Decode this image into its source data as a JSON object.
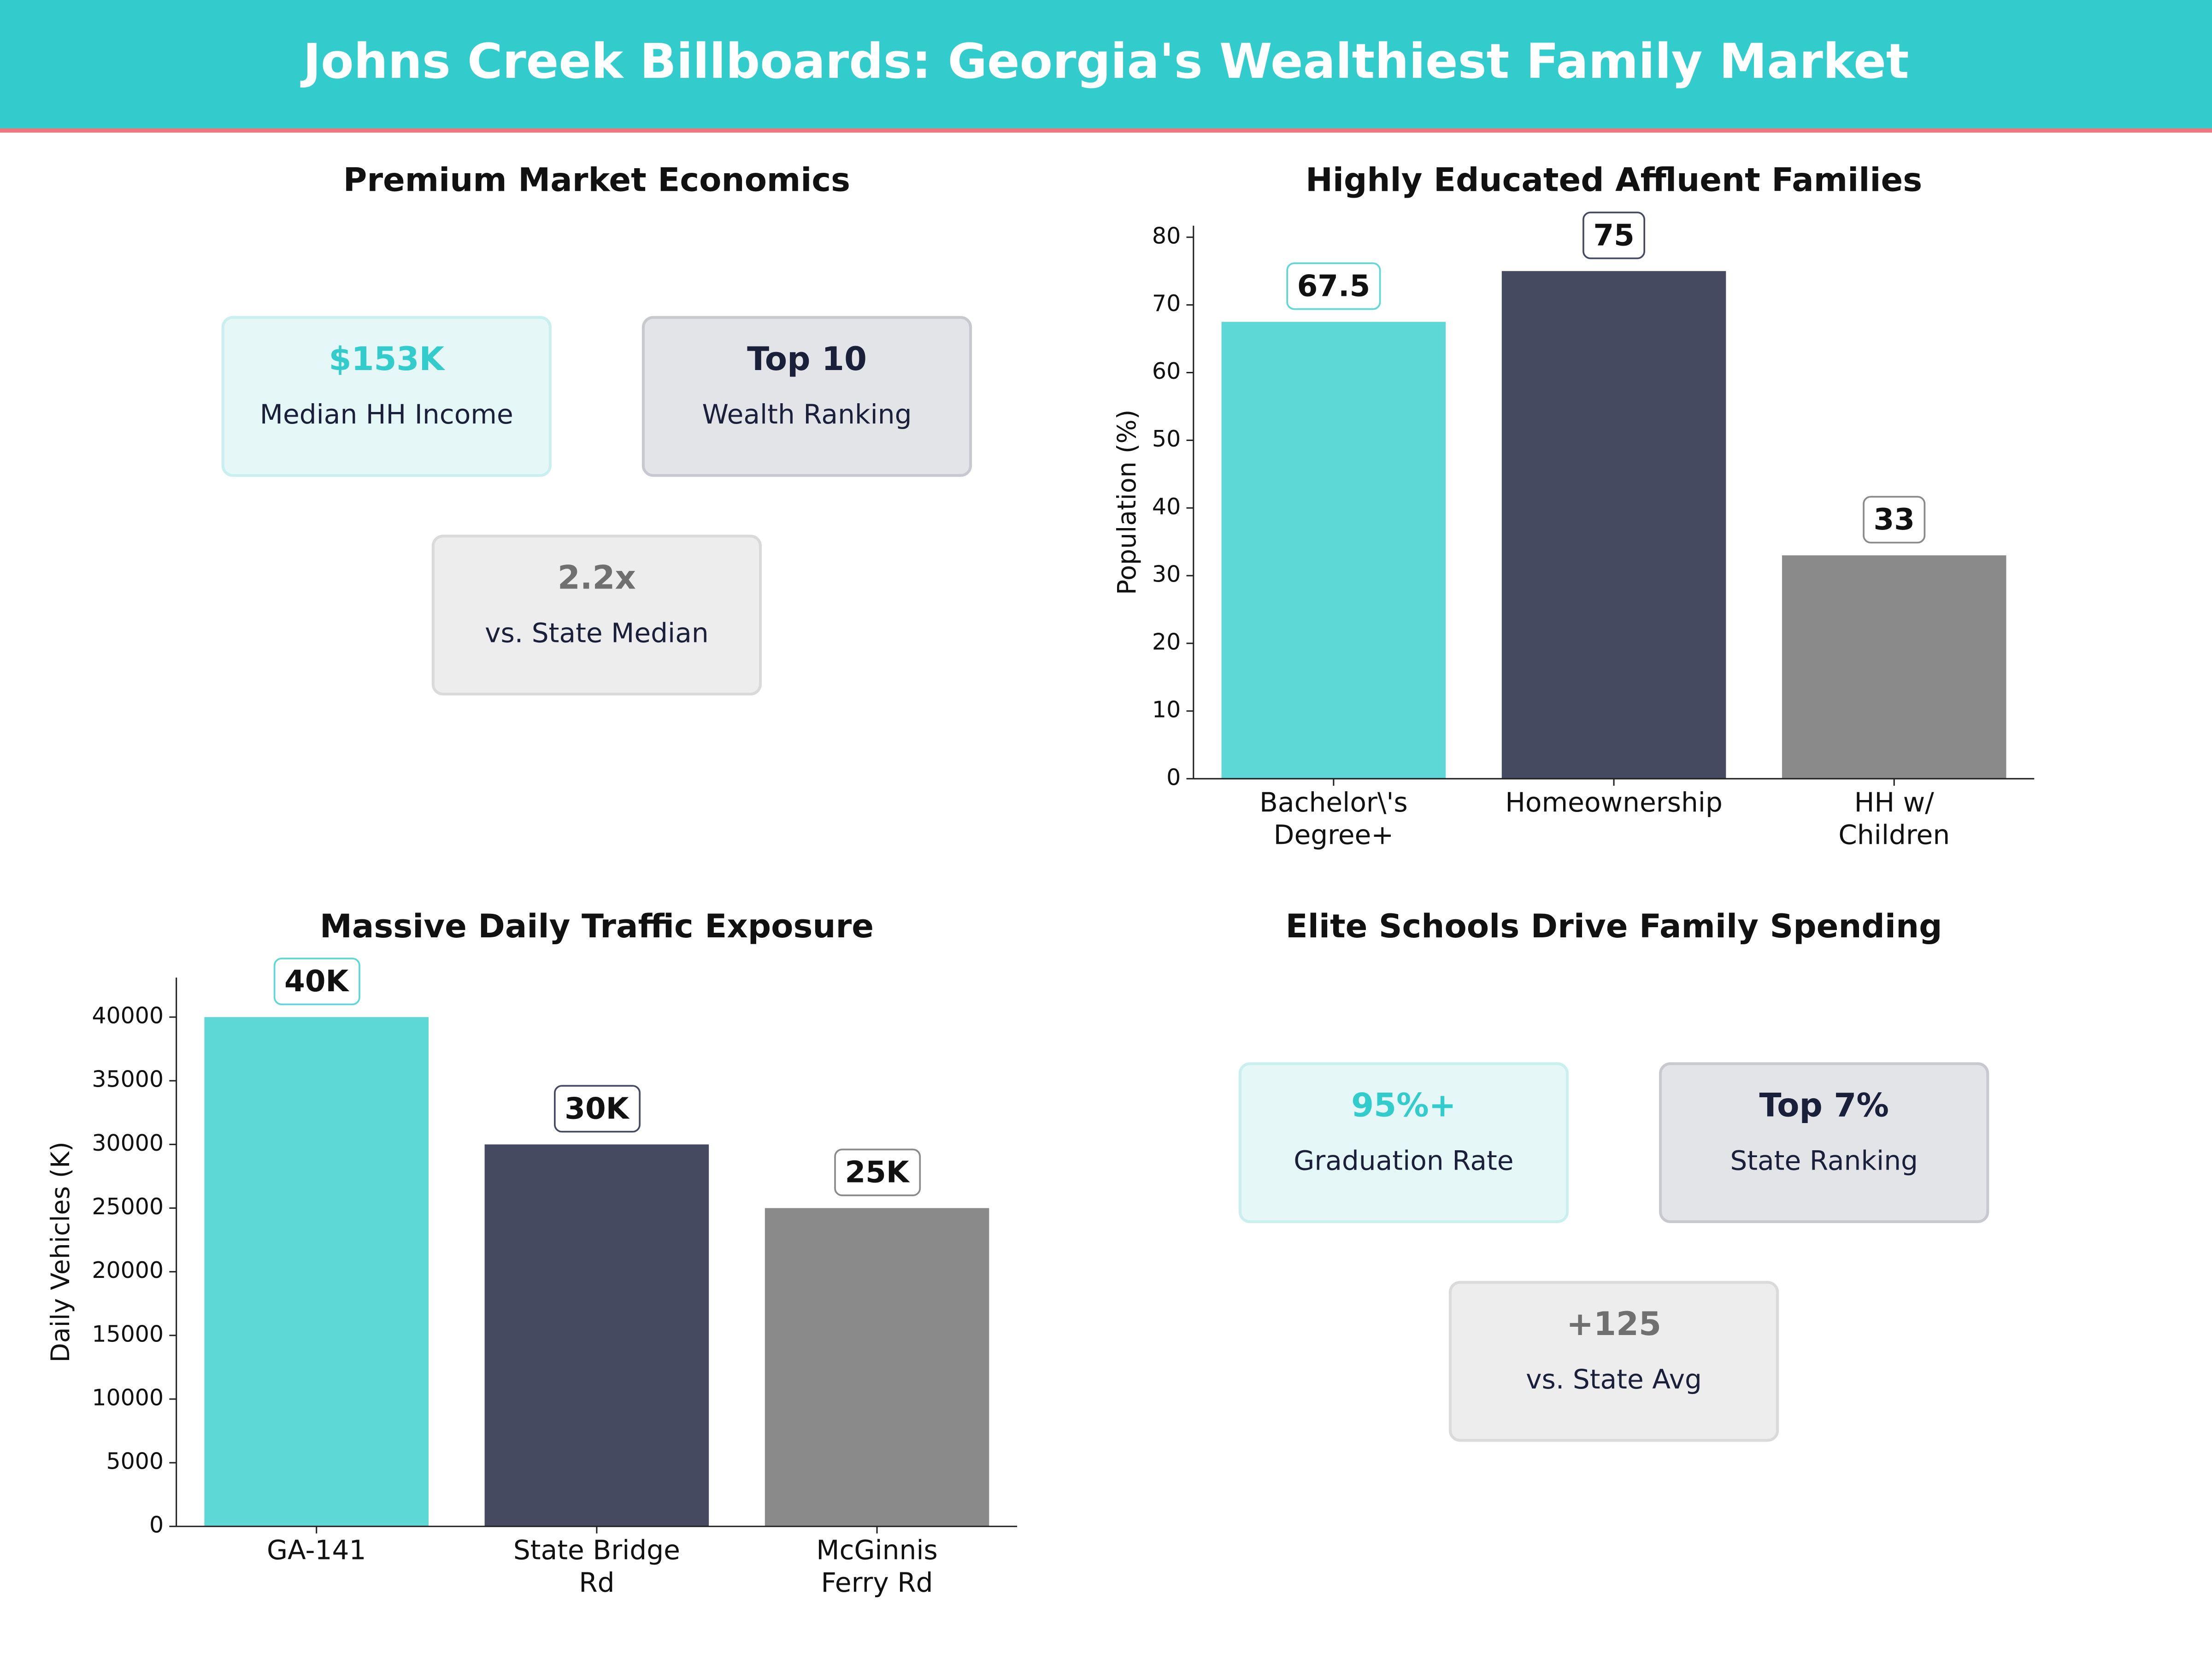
{
  "header": {
    "title": "Johns Creek Billboards: Georgia's Wealthiest Family Market"
  },
  "kpi_panels": [
    {
      "title": "Premium Market Economics",
      "cards": [
        {
          "value": "$153K",
          "label": "Median HH Income"
        },
        {
          "value": "Top 10",
          "label": "Wealth Ranking"
        },
        {
          "value": "2.2x",
          "label": "vs. State Median"
        }
      ]
    },
    {
      "title": "Elite Schools Drive Family Spending",
      "cards": [
        {
          "value": "95%+",
          "label": "Graduation Rate"
        },
        {
          "value": "Top 7%",
          "label": "State Ranking"
        },
        {
          "value": "+125",
          "label": "vs. State Avg"
        }
      ]
    }
  ],
  "chart_data": [
    {
      "type": "bar",
      "title": "Highly Educated Affluent Families",
      "y_label": "Population (%)",
      "categories": [
        "Bachelor\\'s\nDegree+",
        "Homeownership",
        "HH w/\nChildren"
      ],
      "values": [
        67.5,
        75,
        33
      ],
      "colors": [
        "#5dd8d6",
        "#454a60",
        "#8a8a8a"
      ],
      "ylim": [
        0,
        81.7
      ],
      "yticks": [
        0,
        10,
        20,
        30,
        40,
        50,
        60,
        70,
        80
      ],
      "grid": false
    },
    {
      "type": "bar",
      "title": "Massive Daily Traffic Exposure",
      "y_label": "Daily Vehicles (K)",
      "categories": [
        "GA-141",
        "State Bridge\nRd",
        "McGinnis\nFerry Rd"
      ],
      "values": [
        40000,
        30000,
        25000
      ],
      "value_labels": [
        "40K",
        "30K",
        "25K"
      ],
      "colors": [
        "#5dd8d6",
        "#454a60",
        "#8a8a8a"
      ],
      "ylim": [
        0,
        43100
      ],
      "yticks": [
        0,
        5000,
        10000,
        15000,
        20000,
        25000,
        30000,
        35000,
        40000
      ],
      "grid": false
    }
  ]
}
